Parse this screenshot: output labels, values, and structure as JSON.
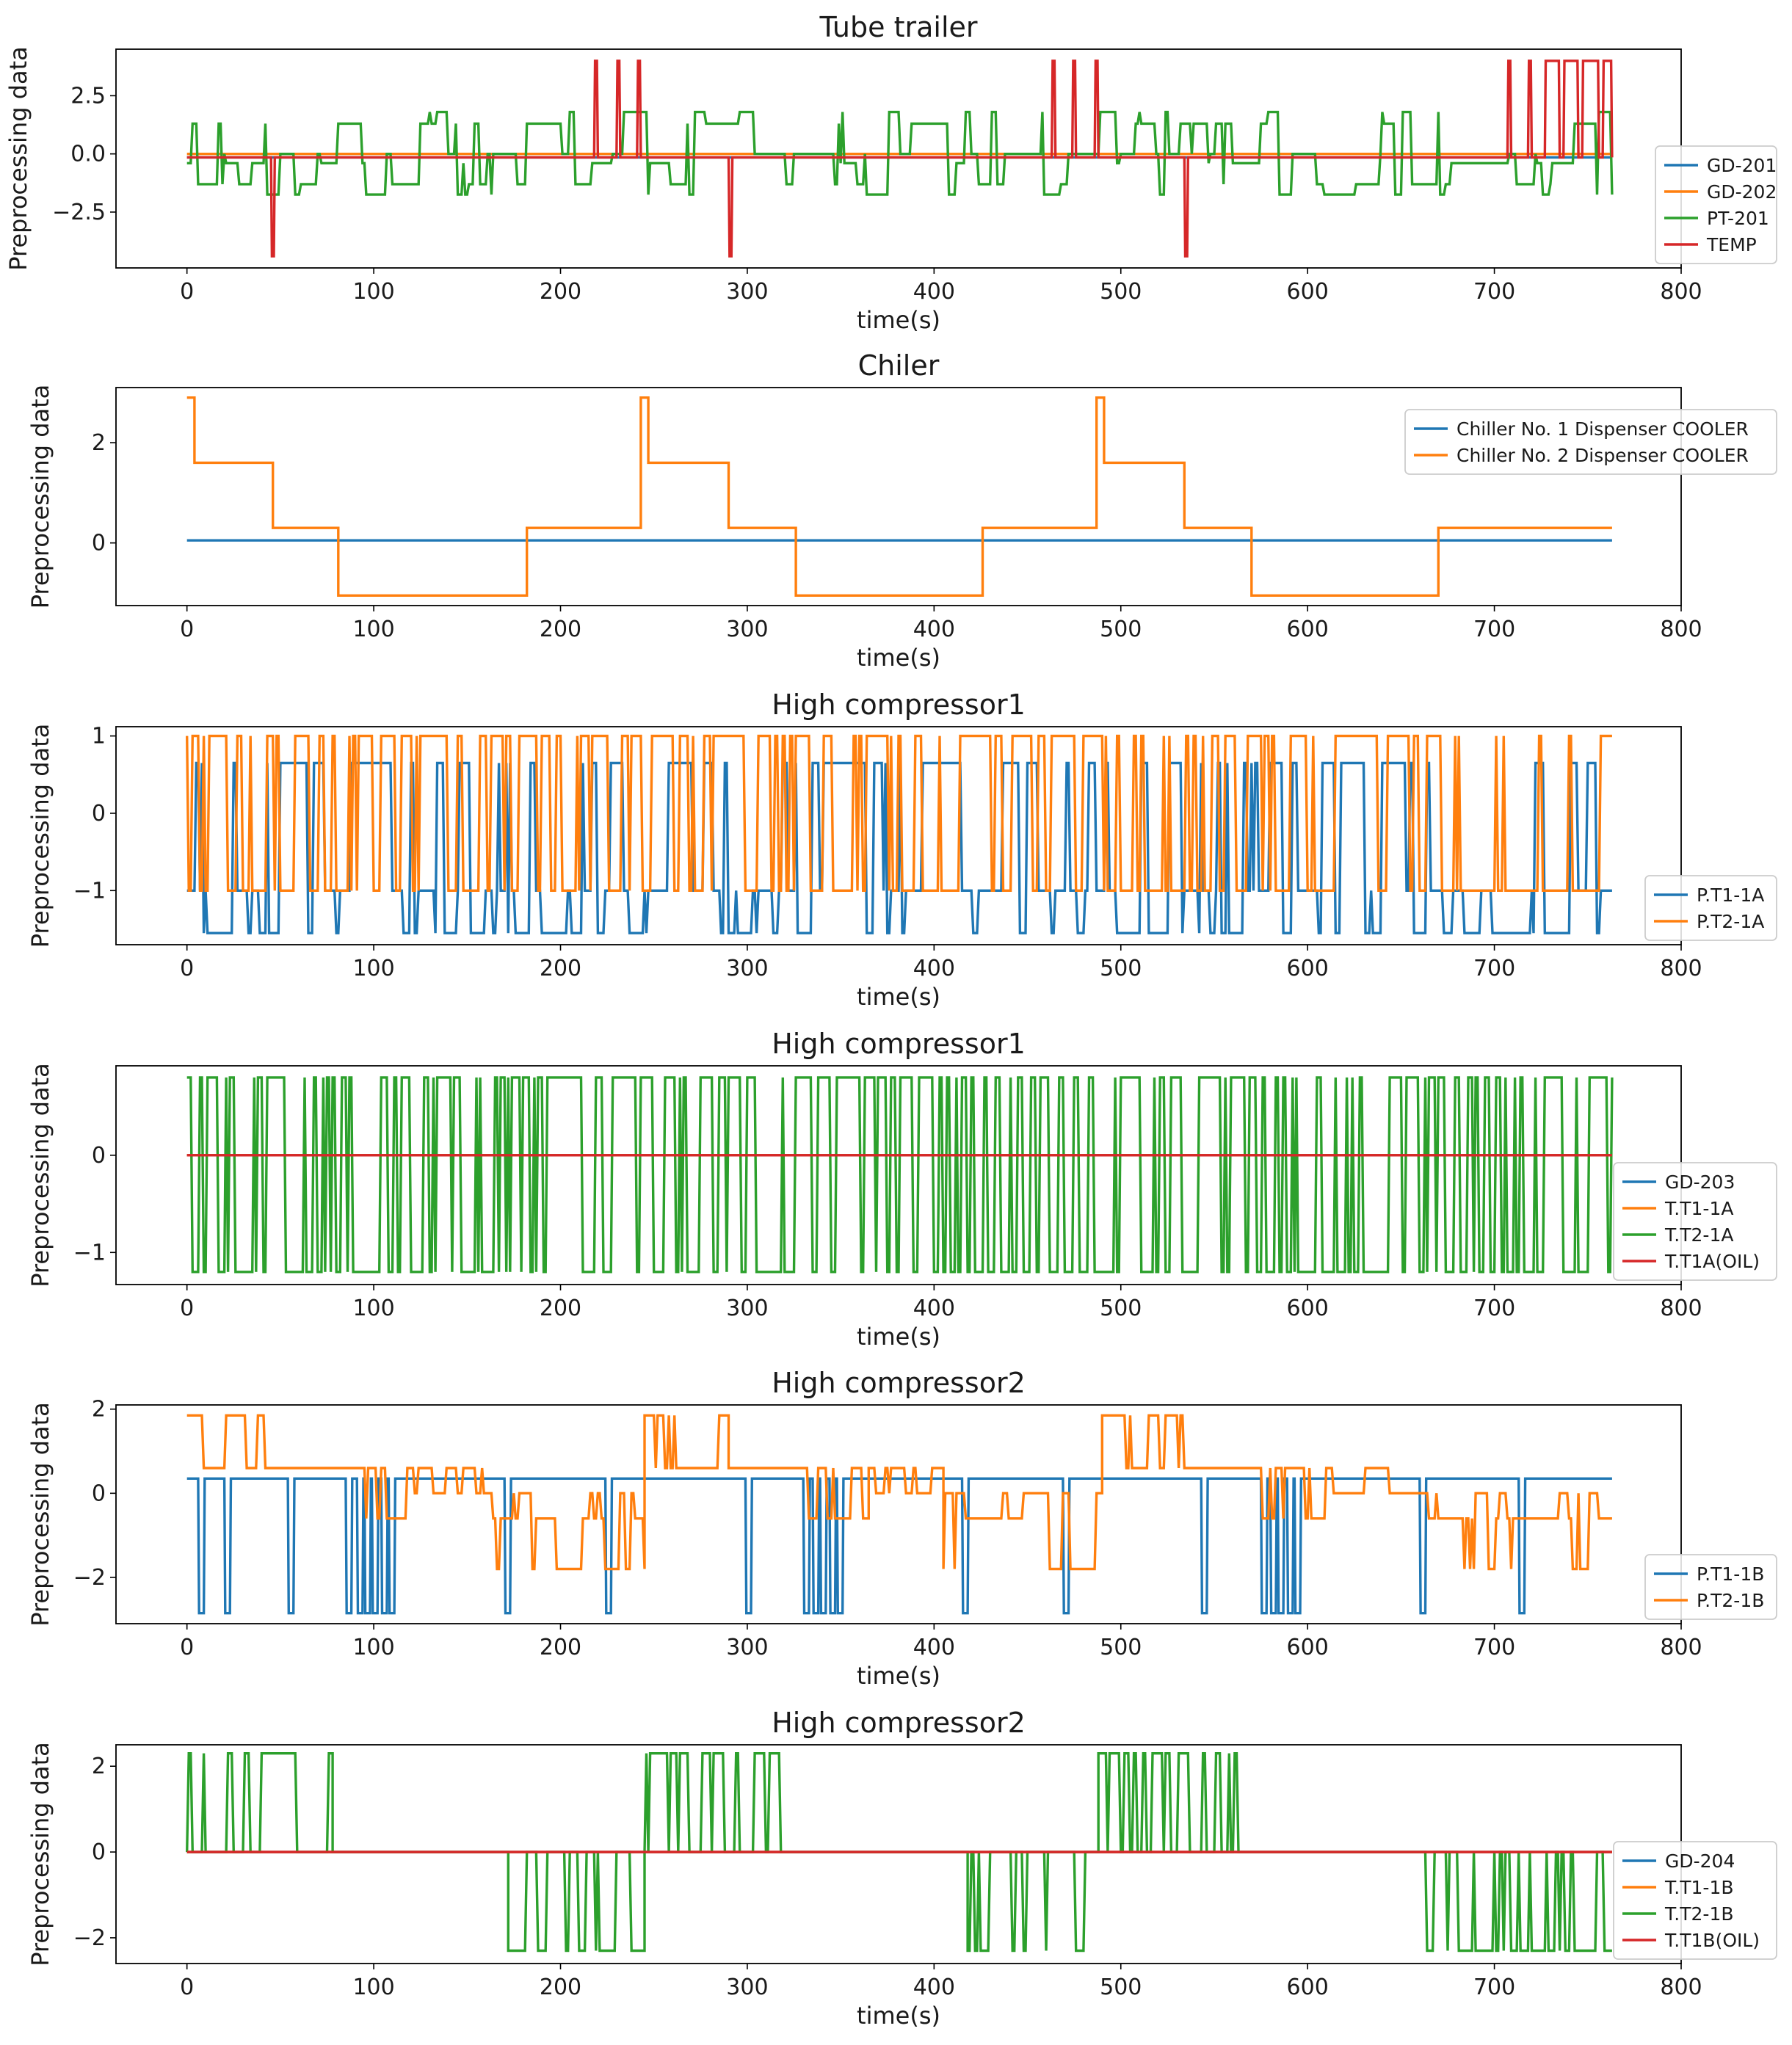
{
  "chart_data": [
    {
      "type": "line",
      "title": "Tube trailer",
      "xlabel": "time(s)",
      "ylabel": "Preprocessing data",
      "xlim": [
        -38,
        800
      ],
      "ylim": [
        -4.9,
        4.5
      ],
      "xticks": [
        0,
        100,
        200,
        300,
        400,
        500,
        600,
        700,
        800
      ],
      "yticks": [
        -2.5,
        0.0,
        2.5
      ],
      "ytick_labels": [
        "−2.5",
        "0.0",
        "2.5"
      ],
      "legend_position": "lower-right",
      "series": [
        {
          "name": "GD-201",
          "color": "#1f77b4",
          "kind": "const",
          "params": {
            "level": -0.15
          }
        },
        {
          "name": "GD-202",
          "color": "#ff7f0e",
          "kind": "const",
          "params": {
            "level": 0.0
          }
        },
        {
          "name": "PT-201",
          "color": "#2ca02c",
          "kind": "random",
          "params": {
            "levels": [
              -1.75,
              -1.3,
              -0.4,
              0.0,
              1.3,
              1.8
            ],
            "base": 2,
            "seed": 11,
            "switch": 0.22
          }
        },
        {
          "name": "TEMP",
          "color": "#d62728",
          "kind": "spikes",
          "params": {
            "base": -0.15,
            "spikes": [
              [
                45,
                47,
                -4.4
              ],
              [
                218,
                220,
                4.0
              ],
              [
                230,
                232,
                4.0
              ],
              [
                241,
                243,
                4.0
              ],
              [
                290,
                292,
                -4.4
              ],
              [
                463,
                465,
                4.0
              ],
              [
                474,
                476,
                4.0
              ],
              [
                486,
                488,
                4.0
              ],
              [
                534,
                536,
                -4.4
              ],
              [
                707,
                709,
                4.0
              ],
              [
                718,
                720,
                4.0
              ],
              [
                727,
                735,
                4.0
              ],
              [
                737,
                745,
                4.0
              ],
              [
                747,
                756,
                4.0
              ],
              [
                758,
                763,
                4.0
              ]
            ]
          }
        }
      ]
    },
    {
      "type": "line",
      "title": "Chiler",
      "xlabel": "time(s)",
      "ylabel": "Preprocessing data",
      "xlim": [
        -38,
        800
      ],
      "ylim": [
        -1.25,
        3.1
      ],
      "xticks": [
        0,
        100,
        200,
        300,
        400,
        500,
        600,
        700,
        800
      ],
      "yticks": [
        0,
        2
      ],
      "ytick_labels": [
        "0",
        "2"
      ],
      "legend_position": "upper-right",
      "series": [
        {
          "name": "Chiller No. 1 Dispenser COOLER",
          "color": "#1f77b4",
          "kind": "const",
          "params": {
            "level": 0.05
          }
        },
        {
          "name": "Chiller No. 2 Dispenser COOLER",
          "color": "#ff7f0e",
          "kind": "steps",
          "params": {
            "points": [
              [
                0,
                2.9
              ],
              [
                4,
                2.9
              ],
              [
                4,
                1.6
              ],
              [
                46,
                1.6
              ],
              [
                46,
                0.3
              ],
              [
                81,
                0.3
              ],
              [
                81,
                -1.05
              ],
              [
                182,
                -1.05
              ],
              [
                182,
                0.3
              ],
              [
                243,
                0.3
              ],
              [
                243,
                2.9
              ],
              [
                247,
                2.9
              ],
              [
                247,
                1.6
              ],
              [
                290,
                1.6
              ],
              [
                290,
                0.3
              ],
              [
                326,
                0.3
              ],
              [
                326,
                -1.05
              ],
              [
                426,
                -1.05
              ],
              [
                426,
                0.3
              ],
              [
                487,
                0.3
              ],
              [
                487,
                2.9
              ],
              [
                491,
                2.9
              ],
              [
                491,
                1.6
              ],
              [
                534,
                1.6
              ],
              [
                534,
                0.3
              ],
              [
                570,
                0.3
              ],
              [
                570,
                -1.05
              ],
              [
                670,
                -1.05
              ],
              [
                670,
                0.3
              ],
              [
                763,
                0.3
              ]
            ]
          }
        }
      ]
    },
    {
      "type": "line",
      "title": "High compressor1",
      "xlabel": "time(s)",
      "ylabel": "Preprocessing data",
      "xlim": [
        -38,
        800
      ],
      "ylim": [
        -1.7,
        1.12
      ],
      "xticks": [
        0,
        100,
        200,
        300,
        400,
        500,
        600,
        700,
        800
      ],
      "yticks": [
        -1,
        0,
        1
      ],
      "ytick_labels": [
        "−1",
        "0",
        "1"
      ],
      "legend_position": "lower-right",
      "series": [
        {
          "name": "P.T1-1A",
          "color": "#1f77b4",
          "kind": "random",
          "params": {
            "levels": [
              -1.55,
              -1.0,
              0.65
            ],
            "base": 2,
            "seed": 23,
            "switch": 0.3
          }
        },
        {
          "name": "P.T2-1A",
          "color": "#ff7f0e",
          "kind": "random",
          "params": {
            "levels": [
              -1.0,
              1.0
            ],
            "base": 1,
            "seed": 37,
            "switch": 0.45
          }
        }
      ]
    },
    {
      "type": "line",
      "title": "High compressor1",
      "xlabel": "time(s)",
      "ylabel": "Preprocessing data",
      "xlim": [
        -38,
        800
      ],
      "ylim": [
        -1.33,
        0.92
      ],
      "xticks": [
        0,
        100,
        200,
        300,
        400,
        500,
        600,
        700,
        800
      ],
      "yticks": [
        -1,
        0
      ],
      "ytick_labels": [
        "−1",
        "0"
      ],
      "legend_position": "lower-right",
      "series": [
        {
          "name": "GD-203",
          "color": "#1f77b4",
          "kind": "const",
          "params": {
            "level": 0.0
          }
        },
        {
          "name": "T.T1-1A",
          "color": "#ff7f0e",
          "kind": "const",
          "params": {
            "level": 0.0
          }
        },
        {
          "name": "T.T2-1A",
          "color": "#2ca02c",
          "kind": "random",
          "params": {
            "levels": [
              -1.2,
              0.8
            ],
            "base": 1,
            "seed": 5,
            "switch": 0.5
          }
        },
        {
          "name": "T.T1A(OIL)",
          "color": "#d62728",
          "kind": "const",
          "params": {
            "level": 0.0
          }
        }
      ]
    },
    {
      "type": "line",
      "title": "High compressor2",
      "xlabel": "time(s)",
      "ylabel": "Preprocessing data",
      "xlim": [
        -38,
        800
      ],
      "ylim": [
        -3.1,
        2.1
      ],
      "xticks": [
        0,
        100,
        200,
        300,
        400,
        500,
        600,
        700,
        800
      ],
      "yticks": [
        -2,
        0,
        2
      ],
      "ytick_labels": [
        "−2",
        "0",
        "2"
      ],
      "legend_position": "lower-right",
      "series": [
        {
          "name": "P.T1-1B",
          "color": "#1f77b4",
          "kind": "pulses",
          "params": {
            "base": 0.35,
            "low": -2.85,
            "times": [
              6,
              20,
              54,
              85,
              91,
              95,
              99,
              104,
              108,
              170,
              224,
              299,
              330,
              335,
              339,
              344,
              348,
              415,
              469,
              543,
              575,
              580,
              584,
              589,
              593,
              660,
              713
            ]
          }
        },
        {
          "name": "P.T2-1B",
          "color": "#ff7f0e",
          "kind": "piecewise",
          "params": {
            "seed": 41,
            "segments": [
              [
                0,
                6,
                "const",
                1.85
              ],
              [
                6,
                46,
                "alt",
                [
                  0.6,
                  1.85
                ],
                0.35
              ],
              [
                46,
                86,
                "const",
                0.6
              ],
              [
                86,
                120,
                "alt",
                [
                  -0.6,
                  0.6
                ],
                0.5
              ],
              [
                120,
                160,
                "alt",
                [
                  0.0,
                  0.6
                ],
                0.3
              ],
              [
                160,
                245,
                "alt",
                [
                  -1.8,
                  -0.6,
                  0.0
                ],
                0.3
              ],
              [
                245,
                250,
                "const",
                1.85
              ],
              [
                250,
                290,
                "alt",
                [
                  0.6,
                  1.85
                ],
                0.35
              ],
              [
                290,
                330,
                "const",
                0.6
              ],
              [
                330,
                365,
                "alt",
                [
                  -0.6,
                  0.6
                ],
                0.5
              ],
              [
                365,
                405,
                "alt",
                [
                  0.0,
                  0.6
                ],
                0.3
              ],
              [
                405,
                490,
                "alt",
                [
                  -1.8,
                  -0.6,
                  0.0
                ],
                0.3
              ],
              [
                490,
                495,
                "const",
                1.85
              ],
              [
                495,
                535,
                "alt",
                [
                  0.6,
                  1.85
                ],
                0.35
              ],
              [
                535,
                575,
                "const",
                0.6
              ],
              [
                575,
                610,
                "alt",
                [
                  -0.6,
                  0.6
                ],
                0.5
              ],
              [
                610,
                650,
                "alt",
                [
                  0.0,
                  0.6
                ],
                0.3
              ],
              [
                650,
                763,
                "alt",
                [
                  -1.8,
                  -0.6,
                  0.0
                ],
                0.3
              ]
            ]
          }
        }
      ]
    },
    {
      "type": "line",
      "title": "High compressor2",
      "xlabel": "time(s)",
      "ylabel": "Preprocessing data",
      "xlim": [
        -38,
        800
      ],
      "ylim": [
        -2.6,
        2.5
      ],
      "xticks": [
        0,
        100,
        200,
        300,
        400,
        500,
        600,
        700,
        800
      ],
      "yticks": [
        -2,
        0,
        2
      ],
      "ytick_labels": [
        "−2",
        "0",
        "2"
      ],
      "legend_position": "lower-right",
      "series": [
        {
          "name": "GD-204",
          "color": "#1f77b4",
          "kind": "const",
          "params": {
            "level": 0.0
          }
        },
        {
          "name": "T.T1-1B",
          "color": "#ff7f0e",
          "kind": "const",
          "params": {
            "level": 0.0
          }
        },
        {
          "name": "T.T2-1B",
          "color": "#2ca02c",
          "kind": "piecewise",
          "params": {
            "seed": 53,
            "segments": [
              [
                0,
                78,
                "alt",
                [
                  0.0,
                  2.3
                ],
                0.45
              ],
              [
                78,
                172,
                "const",
                0.0
              ],
              [
                172,
                245,
                "alt",
                [
                  -2.3,
                  0.0
                ],
                0.45
              ],
              [
                245,
                320,
                "alt",
                [
                  0.0,
                  2.3
                ],
                0.45
              ],
              [
                320,
                418,
                "const",
                0.0
              ],
              [
                418,
                488,
                "alt",
                [
                  -2.3,
                  0.0
                ],
                0.45
              ],
              [
                488,
                565,
                "alt",
                [
                  0.0,
                  2.3
                ],
                0.45
              ],
              [
                565,
                662,
                "const",
                0.0
              ],
              [
                662,
                763,
                "alt",
                [
                  -2.3,
                  0.0
                ],
                0.5
              ]
            ]
          }
        },
        {
          "name": "T.T1B(OIL)",
          "color": "#d62728",
          "kind": "const",
          "params": {
            "level": 0.0
          }
        }
      ]
    }
  ]
}
